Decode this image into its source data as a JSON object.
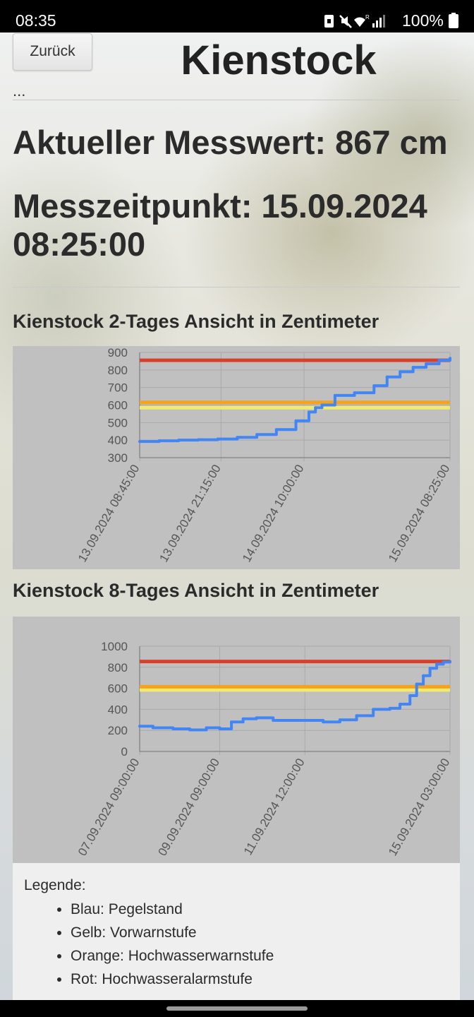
{
  "status_bar": {
    "time": "08:35",
    "battery": "100%",
    "icons": [
      "sim-icon",
      "mute-icon",
      "wifi-icon",
      "signal-icon",
      "battery-icon"
    ]
  },
  "header": {
    "back_label": "Zurück",
    "title": "Kienstock",
    "ellipsis": "..."
  },
  "measurement": {
    "value_text": "Aktueller Messwert: 867 cm",
    "time_line1": "Messzeitpunkt: 15.09.2024",
    "time_line2": "08:25:00"
  },
  "colors": {
    "pegelstand": "#4285f4",
    "vorwarnstufe": "#f0ea6e",
    "hochwasserwarnstufe": "#f5a21c",
    "hochwasseralarmstufe": "#d9402b",
    "chart_background": "#c0c0c0"
  },
  "chart_data": [
    {
      "type": "line",
      "title": "Kienstock 2-Tages Ansicht in Zentimeter",
      "ylim": [
        300,
        900
      ],
      "yticks": [
        300,
        400,
        500,
        600,
        700,
        800,
        900
      ],
      "xlim": [
        0,
        47.67
      ],
      "xticks": [
        {
          "x": 0,
          "label": "13.09.2024 08:45:00"
        },
        {
          "x": 12.5,
          "label": "13.09.2024 21:15:00"
        },
        {
          "x": 25.25,
          "label": "14.09.2024 10:00:00"
        },
        {
          "x": 47.67,
          "label": "15.09.2024 08:25:00"
        }
      ],
      "grid": true,
      "levels": [
        {
          "name": "Vorwarnstufe",
          "value": 585,
          "color": "#f0ea6e"
        },
        {
          "name": "Hochwasserwarnstufe",
          "value": 615,
          "color": "#f5a21c"
        },
        {
          "name": "Hochwasseralarmstufe",
          "value": 855,
          "color": "#d9402b"
        }
      ],
      "series": [
        {
          "color": "#4285f4",
          "x": [
            0,
            3,
            6,
            9,
            12,
            15,
            18,
            21,
            24,
            26,
            27,
            28,
            30,
            33,
            36,
            38,
            40,
            42,
            44,
            46,
            47.67
          ],
          "y": [
            392,
            396,
            400,
            402,
            406,
            416,
            432,
            460,
            510,
            560,
            585,
            600,
            655,
            670,
            710,
            760,
            790,
            815,
            835,
            855,
            867
          ]
        }
      ]
    },
    {
      "type": "line",
      "title": "Kienstock 8-Tages Ansicht in Zentimeter",
      "ylim": [
        0,
        1000
      ],
      "yticks": [
        0,
        200,
        400,
        600,
        800,
        1000
      ],
      "xlim": [
        0,
        186
      ],
      "xticks": [
        {
          "x": 0,
          "label": "07.09.2024 09:00:00"
        },
        {
          "x": 48,
          "label": "09.09.2024 09:00:00"
        },
        {
          "x": 99,
          "label": "11.09.2024 12:00:00"
        },
        {
          "x": 186,
          "label": "15.09.2024 03:00:00"
        }
      ],
      "grid": true,
      "levels": [
        {
          "name": "Vorwarnstufe",
          "value": 585,
          "color": "#f0ea6e"
        },
        {
          "name": "Hochwasserwarnstufe",
          "value": 615,
          "color": "#f5a21c"
        },
        {
          "name": "Hochwasseralarmstufe",
          "value": 855,
          "color": "#d9402b"
        }
      ],
      "series": [
        {
          "color": "#4285f4",
          "x": [
            0,
            8,
            20,
            30,
            40,
            48,
            55,
            62,
            70,
            80,
            90,
            100,
            110,
            120,
            130,
            140,
            150,
            156,
            162,
            166,
            170,
            174,
            178,
            182,
            186
          ],
          "y": [
            240,
            225,
            215,
            205,
            225,
            215,
            280,
            310,
            320,
            295,
            295,
            295,
            280,
            300,
            340,
            400,
            410,
            450,
            530,
            640,
            720,
            790,
            830,
            850,
            855
          ]
        }
      ]
    }
  ],
  "legend": {
    "title": "Legende:",
    "items": [
      "Blau: Pegelstand",
      "Gelb: Vorwarnstufe",
      "Orange: Hochwasserwarnstufe",
      "Rot: Hochwasseralarmstufe"
    ]
  }
}
